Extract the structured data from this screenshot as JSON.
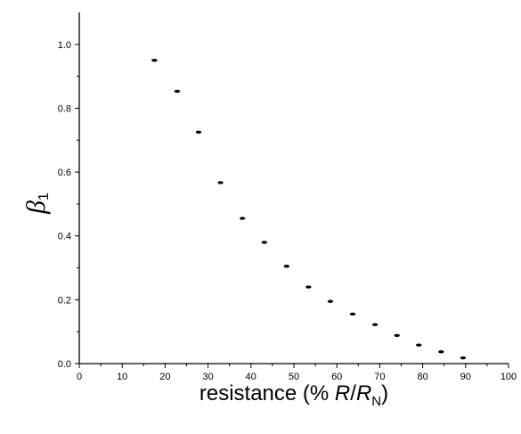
{
  "chart_data": {
    "type": "scatter",
    "title": "",
    "xlabel": {
      "prefix": "resistance (% ",
      "r": "R",
      "slash": "/",
      "rn": "R",
      "rn_sub": "N",
      "suffix": ")"
    },
    "ylabel": {
      "symbol": "β",
      "sub": "1"
    },
    "xlim": [
      0,
      100
    ],
    "ylim": [
      0,
      1.1
    ],
    "x_ticks": [
      0,
      10,
      20,
      30,
      40,
      50,
      60,
      70,
      80,
      90,
      100
    ],
    "x_tick_labels": [
      "0",
      "10",
      "20",
      "30",
      "40",
      "50",
      "60",
      "70",
      "80",
      "90",
      "100"
    ],
    "y_ticks": [
      0.0,
      0.2,
      0.4,
      0.6,
      0.8,
      1.0
    ],
    "y_tick_labels": [
      "0.0",
      "0.2",
      "0.4",
      "0.6",
      "0.8",
      "1.0"
    ],
    "grid": false,
    "legend": "none",
    "marker_color": "#000000",
    "x": [
      17.5,
      22.8,
      27.8,
      32.9,
      38.0,
      43.1,
      48.3,
      53.4,
      58.5,
      63.7,
      68.9,
      74.0,
      79.1,
      84.3,
      89.4
    ],
    "y": [
      0.95,
      0.853,
      0.725,
      0.567,
      0.455,
      0.38,
      0.305,
      0.24,
      0.195,
      0.155,
      0.122,
      0.088,
      0.058,
      0.037,
      0.018
    ]
  }
}
